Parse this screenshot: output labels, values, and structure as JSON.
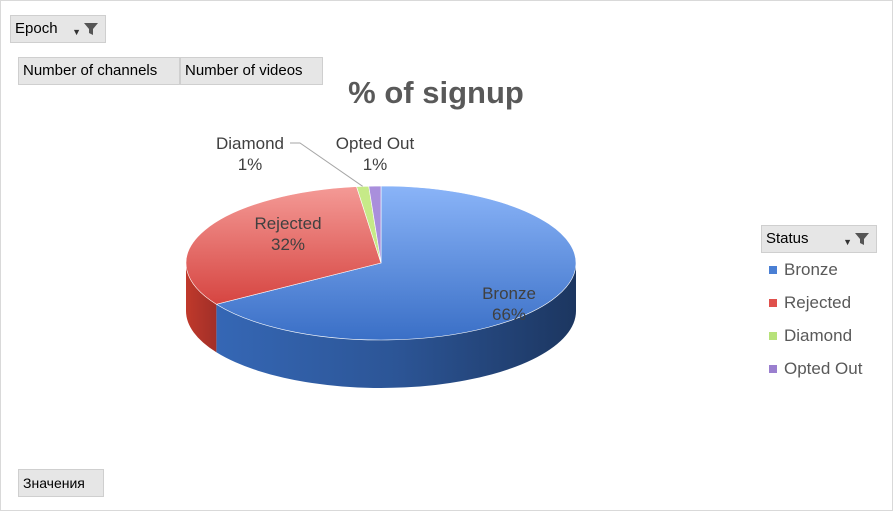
{
  "filters": {
    "epoch": {
      "label": "Epoch"
    },
    "columns": [
      {
        "label": "Number of channels"
      },
      {
        "label": "Number of videos"
      }
    ],
    "values_button": {
      "label": "Значения"
    }
  },
  "legend": {
    "title": "Status",
    "items": [
      {
        "label": "Bronze",
        "color": "#4a7fd4"
      },
      {
        "label": "Rejected",
        "color": "#e0504c"
      },
      {
        "label": "Diamond",
        "color": "#b7e27a"
      },
      {
        "label": "Opted Out",
        "color": "#9a7fcf"
      }
    ]
  },
  "chart_data": {
    "type": "pie",
    "title": "% of signup",
    "categories": [
      "Bronze",
      "Rejected",
      "Diamond",
      "Opted Out"
    ],
    "values": [
      66,
      32,
      1,
      1
    ],
    "value_labels": [
      "66%",
      "32%",
      "1%",
      "1%"
    ],
    "colors": [
      "#4a7fd4",
      "#e0504c",
      "#b7e27a",
      "#9a7fcf"
    ],
    "style": "3d",
    "legend_position": "right"
  }
}
